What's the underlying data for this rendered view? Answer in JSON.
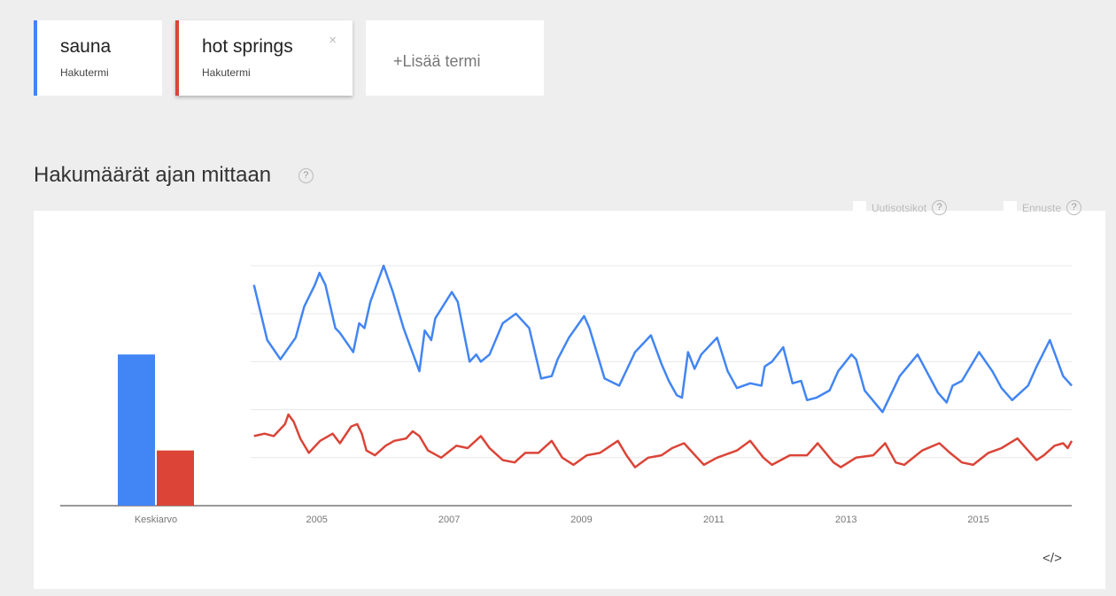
{
  "terms": [
    {
      "name": "sauna",
      "sub": "Hakutermi",
      "color": "#4285f4"
    },
    {
      "name": "hot springs",
      "sub": "Hakutermi",
      "color": "#db4437",
      "close": "×"
    }
  ],
  "add_term": "+Lisää termi",
  "help": "?",
  "options": [
    {
      "label": "Uutisotsikot"
    },
    {
      "label": "Ennuste"
    }
  ],
  "embed": "</>",
  "chart_data": {
    "type": "line",
    "title": "Hakumäärät ajan mittaan",
    "average_label": "Keskiarvo",
    "xlim": [
      2004,
      2016.41
    ],
    "xticks": [
      2005,
      2007,
      2009,
      2011,
      2013,
      2015
    ],
    "ylim": [
      0,
      100
    ],
    "yticks": [
      20,
      40,
      60,
      80,
      100
    ],
    "grid": true,
    "series": [
      {
        "name": "sauna",
        "color": "#4285f4",
        "average": 63,
        "x": [
          2004.05,
          2004.25,
          2004.45,
          2004.68,
          2004.81,
          2004.97,
          2005.04,
          2005.13,
          2005.28,
          2005.35,
          2005.55,
          2005.64,
          2005.72,
          2005.81,
          2006.01,
          2006.15,
          2006.31,
          2006.55,
          2006.63,
          2006.73,
          2006.79,
          2007.04,
          2007.13,
          2007.31,
          2007.41,
          2007.48,
          2007.61,
          2007.81,
          2008.01,
          2008.21,
          2008.39,
          2008.55,
          2008.64,
          2008.81,
          2009.04,
          2009.12,
          2009.35,
          2009.57,
          2009.81,
          2010.05,
          2010.21,
          2010.32,
          2010.44,
          2010.52,
          2010.61,
          2010.71,
          2010.81,
          2011.05,
          2011.21,
          2011.35,
          2011.55,
          2011.72,
          2011.77,
          2011.88,
          2012.05,
          2012.19,
          2012.32,
          2012.41,
          2012.55,
          2012.75,
          2012.88,
          2013.08,
          2013.15,
          2013.28,
          2013.55,
          2013.81,
          2014.08,
          2014.39,
          2014.52,
          2014.61,
          2014.75,
          2015.01,
          2015.21,
          2015.35,
          2015.51,
          2015.75,
          2015.88,
          2016.08,
          2016.28,
          2016.41
        ],
        "values": [
          92,
          69,
          61,
          70,
          83,
          92,
          97,
          92,
          74,
          72,
          64,
          76,
          74,
          85,
          100,
          89,
          74,
          56,
          73,
          69,
          78,
          89,
          85,
          60,
          63,
          60,
          63,
          76,
          80,
          74,
          53,
          54,
          61,
          70,
          79,
          74,
          53,
          50,
          64,
          71,
          59,
          52,
          46,
          45,
          64,
          57,
          63,
          70,
          56,
          49,
          51,
          50,
          58,
          60,
          66,
          51,
          52,
          44,
          45,
          48,
          56,
          63,
          61,
          48,
          39,
          54,
          63,
          47,
          43,
          50,
          52,
          64,
          56,
          49,
          44,
          50,
          58,
          69,
          54,
          50
        ]
      },
      {
        "name": "hot springs",
        "color": "#db4437",
        "average": 23,
        "x": [
          2004.05,
          2004.21,
          2004.35,
          2004.52,
          2004.57,
          2004.65,
          2004.75,
          2004.88,
          2005.05,
          2005.24,
          2005.35,
          2005.52,
          2005.61,
          2005.68,
          2005.75,
          2005.88,
          2006.04,
          2006.17,
          2006.35,
          2006.45,
          2006.55,
          2006.68,
          2006.88,
          2007.11,
          2007.28,
          2007.48,
          2007.61,
          2007.81,
          2007.99,
          2008.15,
          2008.35,
          2008.55,
          2008.71,
          2008.88,
          2009.08,
          2009.28,
          2009.55,
          2009.68,
          2009.81,
          2010.01,
          2010.21,
          2010.37,
          2010.55,
          2010.75,
          2010.85,
          2011.05,
          2011.35,
          2011.55,
          2011.75,
          2011.88,
          2012.15,
          2012.41,
          2012.57,
          2012.81,
          2012.92,
          2013.15,
          2013.41,
          2013.59,
          2013.75,
          2013.88,
          2014.15,
          2014.41,
          2014.57,
          2014.75,
          2014.92,
          2015.15,
          2015.35,
          2015.59,
          2015.75,
          2015.88,
          2015.99,
          2016.15,
          2016.28,
          2016.35,
          2016.41
        ],
        "values": [
          29,
          30,
          29,
          34,
          38,
          35,
          28,
          22,
          27,
          30,
          26,
          33,
          34,
          30,
          23,
          21,
          25,
          27,
          28,
          31,
          29,
          23,
          20,
          25,
          24,
          29,
          24,
          19,
          18,
          22,
          22,
          27,
          20,
          17,
          21,
          22,
          27,
          21,
          16,
          20,
          21,
          24,
          26,
          20,
          17,
          20,
          23,
          27,
          20,
          17,
          21,
          21,
          26,
          18,
          16,
          20,
          21,
          26,
          18,
          17,
          23,
          26,
          22,
          18,
          17,
          22,
          24,
          28,
          23,
          19,
          21,
          25,
          26,
          24,
          27
        ]
      }
    ]
  }
}
